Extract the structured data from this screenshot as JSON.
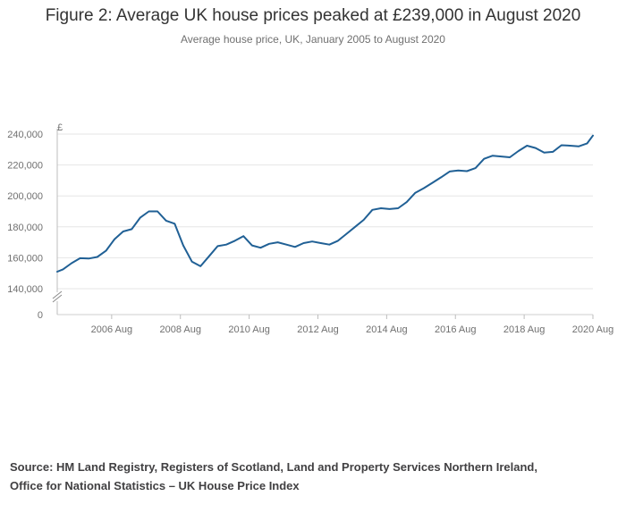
{
  "header": {
    "title": "Figure 2: Average UK house prices peaked at £239,000 in August 2020",
    "subtitle": "Average house price, UK, January 2005 to August 2020"
  },
  "source": {
    "line1": "Source: HM Land Registry, Registers of Scotland, Land and Property Services Northern Ireland,",
    "line2": "Office for National Statistics – UK House Price Index"
  },
  "chart_data": {
    "type": "line",
    "title": "Figure 2: Average UK house prices peaked at £239,000 in August 2020",
    "subtitle": "Average house price, UK, January 2005 to August 2020",
    "ylabel": "£",
    "xlabel": "",
    "ylim": [
      140000,
      240000
    ],
    "y_axis_break": true,
    "y_ticks": [
      240000,
      220000,
      200000,
      180000,
      160000,
      140000,
      0
    ],
    "y_tick_labels": [
      "240,000",
      "220,000",
      "200,000",
      "180,000",
      "160,000",
      "140,000",
      "0"
    ],
    "x_tick_labels": [
      "2006 Aug",
      "2008 Aug",
      "2010 Aug",
      "2012 Aug",
      "2014 Aug",
      "2016 Aug",
      "2018 Aug",
      "2020 Aug"
    ],
    "x_ticks": [
      "2006-08",
      "2008-08",
      "2010-08",
      "2012-08",
      "2014-08",
      "2016-08",
      "2018-08",
      "2020-08"
    ],
    "grid": true,
    "color": "#206095",
    "series": [
      {
        "x": [
          "2005-01",
          "2005-03",
          "2005-06",
          "2005-09",
          "2005-12",
          "2006-03",
          "2006-06",
          "2006-09",
          "2006-12",
          "2007-03",
          "2007-06",
          "2007-09",
          "2007-12",
          "2008-03",
          "2008-06",
          "2008-09",
          "2008-12",
          "2009-03",
          "2009-06",
          "2009-09",
          "2009-12",
          "2010-03",
          "2010-06",
          "2010-09",
          "2010-12",
          "2011-03",
          "2011-06",
          "2011-09",
          "2011-12",
          "2012-03",
          "2012-06",
          "2012-09",
          "2012-12",
          "2013-03",
          "2013-06",
          "2013-09",
          "2013-12",
          "2014-03",
          "2014-06",
          "2014-09",
          "2014-12",
          "2015-03",
          "2015-06",
          "2015-09",
          "2015-12",
          "2016-03",
          "2016-06",
          "2016-09",
          "2016-12",
          "2017-03",
          "2017-06",
          "2017-09",
          "2017-12",
          "2018-03",
          "2018-06",
          "2018-09",
          "2018-12",
          "2019-03",
          "2019-06",
          "2019-09",
          "2019-12",
          "2020-03",
          "2020-06",
          "2020-08"
        ],
        "values": [
          151000,
          152500,
          156500,
          159700,
          159500,
          160500,
          164500,
          172000,
          177000,
          178500,
          186000,
          190000,
          190000,
          184000,
          182000,
          168000,
          157500,
          154500,
          161000,
          167500,
          168500,
          171000,
          174000,
          168000,
          166500,
          169000,
          170000,
          168500,
          167000,
          169500,
          170500,
          169500,
          168500,
          171000,
          175500,
          180000,
          184500,
          191000,
          192000,
          191500,
          192000,
          196000,
          202000,
          205000,
          208500,
          212000,
          215800,
          216500,
          216000,
          218000,
          224000,
          226000,
          225500,
          225000,
          229000,
          232500,
          231000,
          228000,
          228500,
          232800,
          232500,
          232000,
          234000,
          239000
        ]
      }
    ]
  }
}
